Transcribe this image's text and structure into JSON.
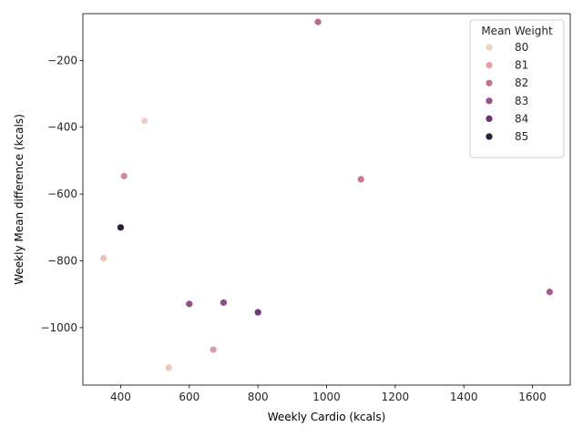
{
  "chart_data": {
    "type": "scatter",
    "xlabel": "Weekly Cardio (kcals)",
    "ylabel": "Weekly Mean difference (kcals)",
    "xlim": [
      290,
      1710
    ],
    "ylim": [
      -1172,
      -60
    ],
    "xticks": [
      400,
      600,
      800,
      1000,
      1200,
      1400,
      1600
    ],
    "yticks": [
      -200,
      -400,
      -600,
      -800,
      -1000
    ],
    "legend": {
      "title": "Mean Weight",
      "placement": "top-right",
      "entries": [
        {
          "label": "80",
          "color": "#efcfc2"
        },
        {
          "label": "81",
          "color": "#dea3a6"
        },
        {
          "label": "82",
          "color": "#c07493"
        },
        {
          "label": "83",
          "color": "#985189"
        },
        {
          "label": "84",
          "color": "#6a3373"
        },
        {
          "label": "85",
          "color": "#2d1e3e"
        }
      ]
    },
    "color_scale": {
      "min": 80,
      "max": 85.2,
      "stops": [
        "#f0d3c6",
        "#e1aaaa",
        "#c77f9b",
        "#a25a8f",
        "#713a78",
        "#301c3f"
      ]
    },
    "points": [
      {
        "x": 975,
        "y": -85,
        "weight": 82.6
      },
      {
        "x": 470,
        "y": -381,
        "weight": 80.1
      },
      {
        "x": 410,
        "y": -546,
        "weight": 81.8
      },
      {
        "x": 1100,
        "y": -556,
        "weight": 82.2
      },
      {
        "x": 400,
        "y": -700,
        "weight": 85.2
      },
      {
        "x": 350,
        "y": -792,
        "weight": 80.4
      },
      {
        "x": 1650,
        "y": -893,
        "weight": 83.0
      },
      {
        "x": 700,
        "y": -925,
        "weight": 83.5
      },
      {
        "x": 600,
        "y": -929,
        "weight": 83.4
      },
      {
        "x": 800,
        "y": -954,
        "weight": 84.2
      },
      {
        "x": 670,
        "y": -1066,
        "weight": 81.4
      },
      {
        "x": 540,
        "y": -1120,
        "weight": 80.3
      }
    ]
  }
}
